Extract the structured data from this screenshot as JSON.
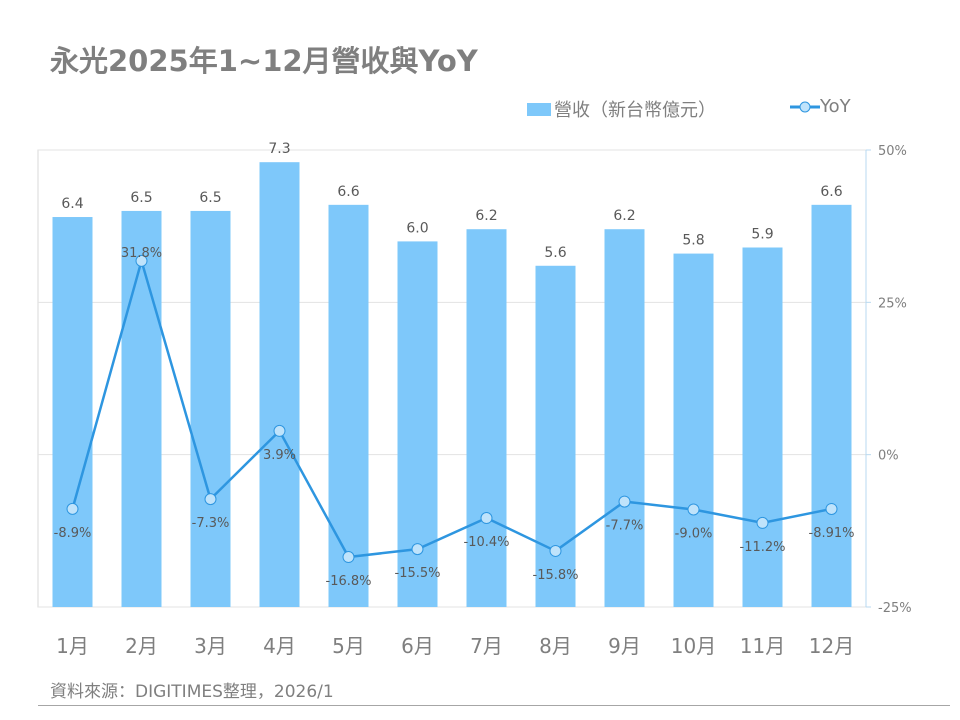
{
  "title": "永光2025年1~12月營收與YoY",
  "source": "資料來源：DIGITIMES整理，2026/1",
  "colors": {
    "bar": "#7ec8fa",
    "line": "#2e96e0",
    "marker": "#bfe3fb"
  },
  "chart_data": {
    "type": "bar+line",
    "title": "永光2025年1~12月營收與YoY",
    "categories": [
      "1月",
      "2月",
      "3月",
      "4月",
      "5月",
      "6月",
      "7月",
      "8月",
      "9月",
      "10月",
      "11月",
      "12月"
    ],
    "series": [
      {
        "name": "營收（新台幣億元）",
        "type": "bar",
        "axis": "left",
        "values": [
          6.4,
          6.5,
          6.5,
          7.3,
          6.6,
          6.0,
          6.2,
          5.6,
          6.2,
          5.8,
          5.9,
          6.6
        ],
        "labels": [
          "6.4",
          "6.5",
          "6.5",
          "7.3",
          "6.6",
          "6.0",
          "6.2",
          "5.6",
          "6.2",
          "5.8",
          "5.9",
          "6.6"
        ]
      },
      {
        "name": "YoY",
        "type": "line",
        "axis": "right",
        "values": [
          -8.9,
          31.8,
          -7.3,
          3.9,
          -16.8,
          -15.5,
          -10.4,
          -15.8,
          -7.7,
          -9.0,
          -11.2,
          -8.91
        ],
        "labels": [
          "-8.9%",
          "31.8%",
          "-7.3%",
          "3.9%",
          "-16.8%",
          "-15.5%",
          "-10.4%",
          "-15.8%",
          "-7.7%",
          "-9.0%",
          "-11.2%",
          "-8.91%"
        ]
      }
    ],
    "left_ylim": [
      0,
      7.5
    ],
    "right_ylim": [
      -25,
      50
    ],
    "right_ticks": [
      50,
      25,
      0,
      -25
    ],
    "right_tick_labels": [
      "50%",
      "25%",
      "0%",
      "-25%"
    ],
    "legend": "top-right",
    "grid": true
  }
}
